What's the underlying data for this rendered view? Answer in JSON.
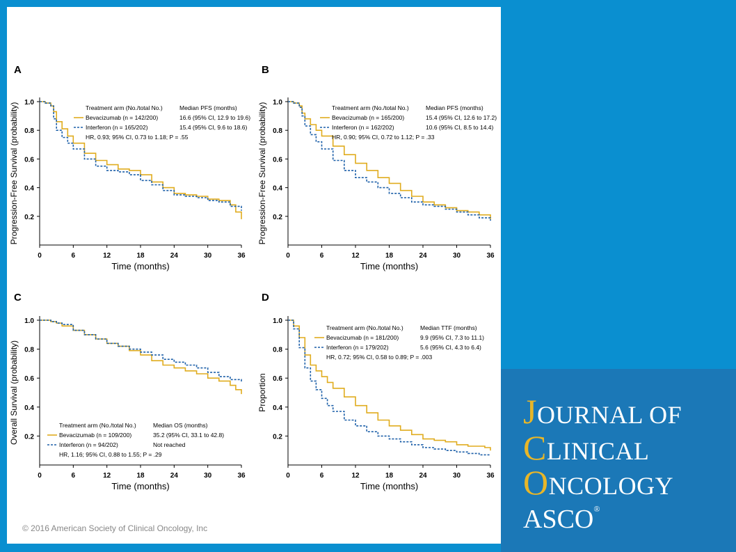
{
  "copyright": "© 2016 American Society of Clinical Oncology, Inc",
  "journal": {
    "line1_cap": "J",
    "line1_rest": "OURNAL OF",
    "line2_cap": "C",
    "line2_rest": "LINICAL",
    "line3_cap": "O",
    "line3_rest": "NCOLOGY",
    "asco": "ASCO",
    "registered_mark": "®"
  },
  "colors": {
    "bevacizumab": "#e0ac1e",
    "interferon": "#1c5fa8",
    "background": "#0a8fd0",
    "journal_box": "#1b78b7",
    "accent": "#e8b628"
  },
  "chart_data": [
    {
      "panel": "A",
      "type": "line",
      "xlabel": "Time (months)",
      "ylabel": "Progression-Free Survival (probability)",
      "xticks": [
        "0",
        "6",
        "12",
        "18",
        "24",
        "30",
        "36"
      ],
      "yticks": [
        "0.2",
        "0.4",
        "0.6",
        "0.8",
        "1.0"
      ],
      "xlim": [
        0,
        36
      ],
      "ylim": [
        0,
        1.0
      ],
      "legend_header": [
        "Treatment arm (No./total No.)",
        "Median PFS (months)"
      ],
      "legend_rows": [
        [
          "Bevacizumab (n = 142/200)",
          "16.6 (95% CI, 12.9 to 19.6)"
        ],
        [
          "Interferon (n = 165/202)",
          "15.4 (95% CI, 9.6 to 18.6)"
        ]
      ],
      "hr_text": "HR, 0.93; 95% CI, 0.73 to 1.18; P = .55",
      "series": [
        {
          "name": "Bevacizumab",
          "x": [
            0,
            1,
            2,
            2.5,
            3,
            4,
            5,
            6,
            8,
            10,
            12,
            14,
            16,
            18,
            20,
            22,
            24,
            26,
            28,
            30,
            32,
            34,
            35,
            36
          ],
          "y": [
            1.0,
            0.99,
            0.97,
            0.93,
            0.86,
            0.81,
            0.76,
            0.71,
            0.64,
            0.59,
            0.56,
            0.53,
            0.52,
            0.49,
            0.44,
            0.4,
            0.36,
            0.35,
            0.34,
            0.32,
            0.31,
            0.28,
            0.23,
            0.18
          ]
        },
        {
          "name": "Interferon",
          "x": [
            0,
            1,
            2,
            2.5,
            3,
            4,
            5,
            6,
            8,
            10,
            12,
            14,
            16,
            18,
            20,
            22,
            24,
            26,
            28,
            30,
            32,
            34,
            36
          ],
          "y": [
            1.0,
            0.99,
            0.97,
            0.88,
            0.8,
            0.75,
            0.71,
            0.67,
            0.6,
            0.55,
            0.52,
            0.51,
            0.49,
            0.45,
            0.42,
            0.38,
            0.35,
            0.34,
            0.33,
            0.31,
            0.3,
            0.27,
            0.24
          ]
        }
      ]
    },
    {
      "panel": "B",
      "type": "line",
      "xlabel": "Time (months)",
      "ylabel": "Progression-Free Survival (probability)",
      "xticks": [
        "0",
        "6",
        "12",
        "18",
        "24",
        "30",
        "36"
      ],
      "yticks": [
        "0.2",
        "0.4",
        "0.6",
        "0.8",
        "1.0"
      ],
      "xlim": [
        0,
        36
      ],
      "ylim": [
        0,
        1.0
      ],
      "legend_header": [
        "Treatment arm (No./total No.)",
        "Median PFS (months)"
      ],
      "legend_rows": [
        [
          "Bevacizumab (n = 165/200)",
          "15.4 (95% CI, 12.6 to 17.2)"
        ],
        [
          "Interferon (n = 162/202)",
          "10.6 (95% CI, 8.5 to 14.4)"
        ]
      ],
      "hr_text": "HR, 0.90; 95% CI, 0.72 to 1.12; P = .33",
      "series": [
        {
          "name": "Bevacizumab",
          "x": [
            0,
            1,
            2,
            2.5,
            3,
            4,
            5,
            6,
            8,
            10,
            12,
            14,
            16,
            18,
            20,
            22,
            24,
            26,
            28,
            30,
            32,
            34,
            36
          ],
          "y": [
            1.0,
            0.99,
            0.97,
            0.92,
            0.88,
            0.84,
            0.8,
            0.76,
            0.69,
            0.63,
            0.57,
            0.52,
            0.47,
            0.43,
            0.38,
            0.34,
            0.3,
            0.28,
            0.26,
            0.24,
            0.23,
            0.21,
            0.18
          ]
        },
        {
          "name": "Interferon",
          "x": [
            0,
            1,
            2,
            2.5,
            3,
            4,
            5,
            6,
            8,
            10,
            12,
            14,
            16,
            18,
            20,
            22,
            24,
            26,
            28,
            30,
            32,
            34,
            36
          ],
          "y": [
            1.0,
            0.99,
            0.96,
            0.9,
            0.83,
            0.77,
            0.72,
            0.67,
            0.59,
            0.52,
            0.47,
            0.44,
            0.4,
            0.36,
            0.33,
            0.3,
            0.28,
            0.27,
            0.25,
            0.23,
            0.21,
            0.19,
            0.17
          ]
        }
      ]
    },
    {
      "panel": "C",
      "type": "line",
      "xlabel": "Time (months)",
      "ylabel": "Overall Survival (probability)",
      "xticks": [
        "0",
        "6",
        "12",
        "18",
        "24",
        "30",
        "36"
      ],
      "yticks": [
        "0.2",
        "0.4",
        "0.6",
        "0.8",
        "1.0"
      ],
      "xlim": [
        0,
        36
      ],
      "ylim": [
        0,
        1.0
      ],
      "legend_header": [
        "Treatment arm (No./total No.)",
        "Median OS (months)"
      ],
      "legend_rows": [
        [
          "Bevacizumab (n = 109/200)",
          "35.2 (95% CI, 33.1 to 42.8)"
        ],
        [
          "Interferon (n = 94/202)",
          "Not reached"
        ]
      ],
      "hr_text": "HR, 1.16; 95% CI, 0.88 to 1.55; P = .29",
      "series": [
        {
          "name": "Bevacizumab",
          "x": [
            0,
            1,
            2,
            3,
            4,
            6,
            8,
            10,
            12,
            14,
            16,
            18,
            20,
            22,
            24,
            26,
            28,
            30,
            32,
            34,
            35,
            36
          ],
          "y": [
            1.0,
            1.0,
            0.99,
            0.98,
            0.96,
            0.93,
            0.9,
            0.87,
            0.84,
            0.82,
            0.79,
            0.76,
            0.72,
            0.69,
            0.67,
            0.65,
            0.63,
            0.6,
            0.58,
            0.55,
            0.52,
            0.49
          ]
        },
        {
          "name": "Interferon",
          "x": [
            0,
            1,
            2,
            3,
            4,
            6,
            8,
            10,
            12,
            14,
            16,
            18,
            20,
            22,
            24,
            26,
            28,
            30,
            32,
            34,
            36
          ],
          "y": [
            1.0,
            1.0,
            0.99,
            0.98,
            0.97,
            0.93,
            0.9,
            0.87,
            0.84,
            0.82,
            0.8,
            0.78,
            0.76,
            0.73,
            0.71,
            0.69,
            0.67,
            0.64,
            0.61,
            0.59,
            0.57
          ]
        }
      ]
    },
    {
      "panel": "D",
      "type": "line",
      "xlabel": "Time (months)",
      "ylabel": "Proportion",
      "xticks": [
        "0",
        "6",
        "12",
        "18",
        "24",
        "30",
        "36"
      ],
      "yticks": [
        "0.2",
        "0.4",
        "0.6",
        "0.8",
        "1.0"
      ],
      "xlim": [
        0,
        36
      ],
      "ylim": [
        0,
        1.0
      ],
      "legend_header": [
        "Treatment arm (No./total No.)",
        "Median TTF (months)"
      ],
      "legend_rows": [
        [
          "Bevacizumab (n = 181/200)",
          "9.9 (95% CI, 7.3 to 11.1)"
        ],
        [
          "Interferon (n = 179/202)",
          "5.6 (95% CI, 4.3 to 6.4)"
        ]
      ],
      "hr_text": "HR, 0.72; 95% CI, 0.58 to 0.89; P = .003",
      "series": [
        {
          "name": "Bevacizumab",
          "x": [
            0,
            1,
            2,
            3,
            4,
            5,
            6,
            7,
            8,
            10,
            12,
            14,
            16,
            18,
            20,
            22,
            24,
            26,
            28,
            30,
            32,
            34,
            35,
            36
          ],
          "y": [
            1.0,
            0.96,
            0.88,
            0.76,
            0.69,
            0.65,
            0.61,
            0.57,
            0.53,
            0.47,
            0.41,
            0.36,
            0.31,
            0.27,
            0.24,
            0.21,
            0.18,
            0.17,
            0.16,
            0.14,
            0.13,
            0.13,
            0.12,
            0.1
          ]
        },
        {
          "name": "Interferon",
          "x": [
            0,
            1,
            2,
            3,
            4,
            5,
            6,
            7,
            8,
            10,
            12,
            14,
            16,
            18,
            20,
            22,
            24,
            26,
            28,
            30,
            32,
            34,
            36
          ],
          "y": [
            1.0,
            0.94,
            0.81,
            0.67,
            0.58,
            0.52,
            0.46,
            0.41,
            0.37,
            0.31,
            0.27,
            0.23,
            0.2,
            0.18,
            0.16,
            0.14,
            0.12,
            0.11,
            0.1,
            0.09,
            0.08,
            0.07,
            0.07
          ]
        }
      ]
    }
  ]
}
